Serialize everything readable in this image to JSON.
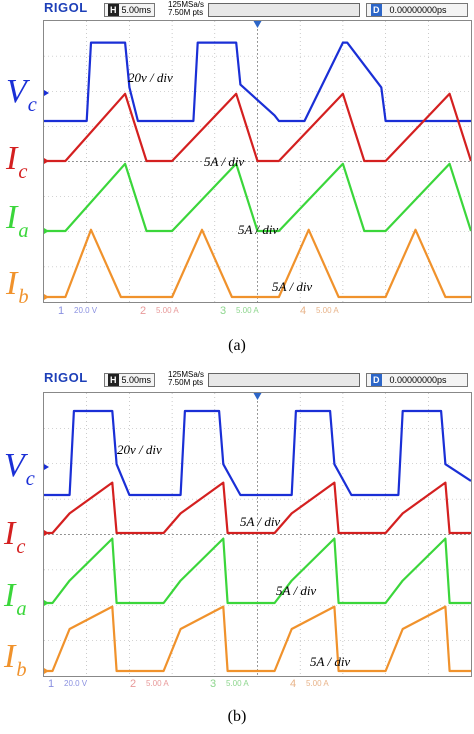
{
  "panels": [
    {
      "id": "a",
      "caption": "(a)",
      "header": {
        "logo": "RIGOL",
        "mode": "H",
        "timebase": "5.00ms",
        "sample_rate": "125MSa/s",
        "memory": "7.50M pts",
        "delay_mode": "D",
        "delay": "0.00000000ps"
      },
      "labels": {
        "vc": "V",
        "vc_sub": "c",
        "ic": "I",
        "ic_sub": "c",
        "ia": "I",
        "ia_sub": "a",
        "ib": "I",
        "ib_sub": "b"
      },
      "scales": {
        "vc": "20v / div",
        "ic": "5A / div",
        "ia": "5A / div",
        "ib": "5A / div"
      },
      "footer": [
        {
          "num": "1",
          "value": "20.0 V"
        },
        {
          "num": "2",
          "value": "5.00 A"
        },
        {
          "num": "3",
          "value": "5.00 A"
        },
        {
          "num": "4",
          "value": "5.00 A"
        }
      ]
    },
    {
      "id": "b",
      "caption": "(b)",
      "header": {
        "logo": "RIGOL",
        "mode": "H",
        "timebase": "5.00ms",
        "sample_rate": "125MSa/s",
        "memory": "7.50M pts",
        "delay_mode": "D",
        "delay": "0.00000000ps"
      },
      "labels": {
        "vc": "V",
        "vc_sub": "c",
        "ic": "I",
        "ic_sub": "c",
        "ia": "I",
        "ia_sub": "a",
        "ib": "I",
        "ib_sub": "b"
      },
      "scales": {
        "vc": "20v / div",
        "ic": "5A / div",
        "ia": "5A / div",
        "ib": "5A / div"
      },
      "footer": [
        {
          "num": "1",
          "value": "20.0 V"
        },
        {
          "num": "2",
          "value": "5.00 A"
        },
        {
          "num": "3",
          "value": "5.00 A"
        },
        {
          "num": "4",
          "value": "5.00 A"
        }
      ]
    }
  ],
  "colors": {
    "ch1": "#1a2fd6",
    "ch2": "#d42020",
    "ch3": "#3bd63b",
    "ch4": "#f0922c",
    "grid": "#a8a8a8"
  },
  "chart_data": [
    {
      "type": "line",
      "panel": "a",
      "x_unit": "ms",
      "x_div": 5,
      "xlim": [
        0,
        50
      ],
      "series": [
        {
          "channel": "1",
          "values": {
            "x": [
              0,
              5,
              5.5,
              9.5,
              10,
              11,
              17.5,
              18,
              22.5,
              23,
              27,
              27.5,
              30.5,
              35,
              35.5,
              39.5,
              40,
              43,
              50
            ],
            "y": [
              -1,
              -1,
              1.8,
              1.8,
              0.2,
              -1,
              -1,
              1.8,
              1.8,
              0.3,
              -0.8,
              -1,
              -1,
              1.8,
              1.8,
              0.2,
              -1,
              -1,
              -1
            ]
          }
        },
        {
          "channel": "2",
          "values": {
            "x": [
              0,
              2.5,
              9.5,
              12,
              15,
              22.5,
              25,
              27.5,
              35,
              37.5,
              40,
              47.5,
              50
            ],
            "y": [
              0,
              0,
              2.4,
              0,
              0,
              2.4,
              0,
              0,
              2.4,
              0,
              0,
              2.4,
              0
            ]
          }
        },
        {
          "channel": "3",
          "values": {
            "x": [
              0,
              2.5,
              9.5,
              12,
              15,
              22.5,
              25,
              27.5,
              35,
              37.5,
              40,
              47.5,
              50
            ],
            "y": [
              0,
              0,
              2.4,
              0,
              0,
              2.4,
              0,
              0,
              2.4,
              0,
              0,
              2.4,
              0
            ]
          }
        },
        {
          "channel": "4",
          "values": {
            "x": [
              0,
              2.5,
              5.5,
              9,
              15,
              18.5,
              22,
              27.5,
              31,
              34.5,
              40,
              43.5,
              47,
              50
            ],
            "y": [
              0,
              0,
              2.4,
              0,
              0,
              2.4,
              0,
              0,
              2.4,
              0,
              0,
              2.4,
              0,
              0
            ]
          }
        }
      ]
    },
    {
      "type": "line",
      "panel": "b",
      "x_unit": "ms",
      "x_div": 5,
      "xlim": [
        0,
        50
      ],
      "series": [
        {
          "channel": "1",
          "values": {
            "x": [
              0,
              3,
              3.5,
              8,
              8.5,
              10,
              16,
              16.5,
              20.5,
              21,
              23,
              29,
              29.5,
              33.5,
              34,
              36,
              41.5,
              42,
              46.5,
              47,
              50
            ],
            "y": [
              -1,
              -1,
              2,
              2,
              0.1,
              -1,
              -1,
              2,
              2,
              0.1,
              -1,
              -1,
              2,
              2,
              0.1,
              -1,
              -1,
              2,
              2,
              0.1,
              -0.5
            ]
          }
        },
        {
          "channel": "2",
          "values": {
            "x": [
              0,
              1,
              3,
              8,
              8.5,
              10,
              14,
              16,
              21,
              21.5,
              23,
              27,
              29,
              34,
              34.5,
              36,
              40,
              42,
              47,
              47.5,
              50
            ],
            "y": [
              0,
              0,
              0.7,
              1.8,
              0,
              0,
              0,
              0.7,
              1.8,
              0,
              0,
              0,
              0.7,
              1.8,
              0,
              0,
              0,
              0.7,
              1.8,
              0,
              0
            ]
          }
        },
        {
          "channel": "3",
          "values": {
            "x": [
              0,
              1,
              3,
              8,
              8.5,
              10,
              14,
              16,
              21,
              21.5,
              23,
              27,
              29,
              34,
              34.5,
              36,
              40,
              42,
              47,
              47.5,
              50
            ],
            "y": [
              0,
              0,
              0.8,
              2.3,
              0,
              0,
              0,
              0.8,
              2.3,
              0,
              0,
              0,
              0.8,
              2.3,
              0,
              0,
              0,
              0.8,
              2.3,
              0,
              0
            ]
          }
        },
        {
          "channel": "4",
          "values": {
            "x": [
              0,
              1,
              3,
              8,
              8.5,
              10,
              14,
              16,
              21,
              21.5,
              23,
              27,
              29,
              34,
              34.5,
              36,
              40,
              42,
              47,
              47.5,
              50
            ],
            "y": [
              0,
              0,
              1.5,
              2.3,
              0,
              0,
              0,
              1.5,
              2.3,
              0,
              0,
              0,
              1.5,
              2.3,
              0,
              0,
              0,
              1.5,
              2.3,
              0,
              0
            ]
          }
        }
      ]
    }
  ]
}
